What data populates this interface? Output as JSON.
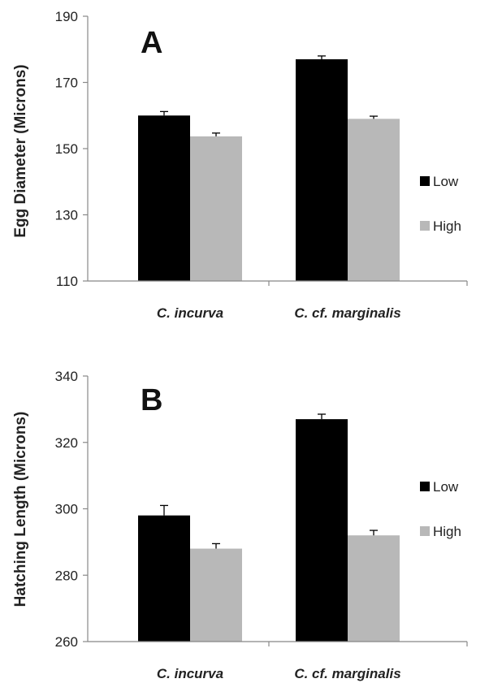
{
  "chart_data": [
    {
      "type": "bar",
      "panel_label": "A",
      "categories": [
        "C. incurva",
        "C. cf. marginalis"
      ],
      "series": [
        {
          "name": "Low",
          "values": [
            160,
            177
          ],
          "errors": [
            1.2,
            1.0
          ],
          "color": "#000000"
        },
        {
          "name": "High",
          "values": [
            153.7,
            159
          ],
          "errors": [
            1.0,
            0.8
          ],
          "color": "#b8b8b8"
        }
      ],
      "ylabel": "Egg Diameter (Microns)",
      "ylim": [
        110,
        190
      ],
      "yticks": [
        "110",
        "130",
        "150",
        "170",
        "190"
      ],
      "legend_position": "right",
      "grid": false
    },
    {
      "type": "bar",
      "panel_label": "B",
      "categories": [
        "C. incurva",
        "C. cf. marginalis"
      ],
      "series": [
        {
          "name": "Low",
          "values": [
            298,
            327
          ],
          "errors": [
            3.0,
            1.5
          ],
          "color": "#000000"
        },
        {
          "name": "High",
          "values": [
            288,
            292
          ],
          "errors": [
            1.5,
            1.5
          ],
          "color": "#b8b8b8"
        }
      ],
      "ylabel": "Hatching Length (Microns)",
      "ylim": [
        260,
        340
      ],
      "yticks": [
        "260",
        "280",
        "300",
        "320",
        "340"
      ],
      "legend_position": "right",
      "grid": false
    }
  ]
}
